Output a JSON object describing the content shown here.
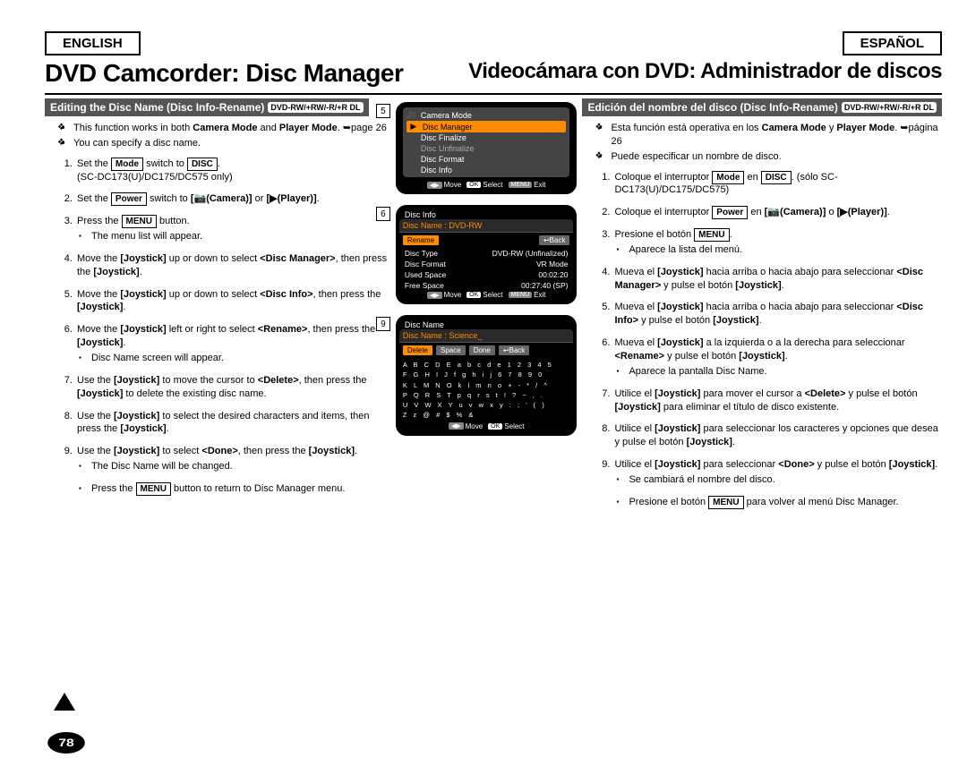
{
  "lang": {
    "en": "ENGLISH",
    "es": "ESPAÑOL"
  },
  "title": {
    "en": "DVD Camcorder: Disc Manager",
    "es": "Videocámara con DVD: Administrador de discos"
  },
  "subhead": {
    "en": "Editing the Disc Name (Disc Info-Rename)",
    "es": "Edición del nombre del disco (Disc Info-Rename)",
    "badge": "DVD-RW/+RW/-R/+R DL"
  },
  "notes_en": [
    "This function works in both <b>Camera Mode</b> and <b>Player Mode</b>. ➥page 26",
    "You can specify a disc name."
  ],
  "notes_es": [
    "Esta función está operativa en los <b>Camera Mode</b> y <b>Player Mode</b>. ➥página 26",
    "Puede especificar un nombre de disco."
  ],
  "steps_en": [
    "Set the <span class='box'>Mode</span> switch to <span class='box'>DISC</span>.<br>(SC-DC173(U)/DC175/DC575 only)",
    "Set the <span class='box'>Power</span> switch to <b>[📷(Camera)]</b> or <b>[▶(Player)]</b>.",
    "Press the <span class='box'>MENU</span> button.<ul class='sub'><li>The menu list will appear.</li></ul>",
    "Move the <b>[Joystick]</b> up or down to select <b>&lt;Disc Manager&gt;</b>, then press the <b>[Joystick]</b>.",
    "Move the <b>[Joystick]</b> up or down to select <b>&lt;Disc Info&gt;</b>, then press the <b>[Joystick]</b>.",
    "Move the <b>[Joystick]</b> left or right to select <b>&lt;Rename&gt;</b>, then press the <b>[Joystick]</b>.<ul class='sub'><li>Disc Name screen will appear.</li></ul>",
    "Use the <b>[Joystick]</b> to move the cursor to <b>&lt;Delete&gt;</b>, then press the <b>[Joystick]</b> to delete the existing disc name.",
    "Use the <b>[Joystick]</b> to select the desired characters and items, then press the <b>[Joystick]</b>.",
    "Use the <b>[Joystick]</b> to select <b>&lt;Done&gt;</b>, then press the <b>[Joystick]</b>.<ul class='sub'><li>The Disc Name will be changed.</li><li>Press the <span class='box'>MENU</span> button to return to Disc Manager menu.</li></ul>"
  ],
  "steps_es": [
    "Coloque el interruptor <span class='box'>Mode</span> en <span class='box'>DISC</span>. (sólo SC-DC173(U)/DC175/DC575)",
    "Coloque el interruptor <span class='box'>Power</span> en <b>[📷(Camera)]</b> o <b>[▶(Player)]</b>.",
    "Presione el botón <span class='box'>MENU</span>.<ul class='sub'><li>Aparece la lista del menú.</li></ul>",
    "Mueva el <b>[Joystick]</b> hacia arriba o hacia abajo para seleccionar <b>&lt;Disc Manager&gt;</b> y pulse el botón <b>[Joystick]</b>.",
    "Mueva el <b>[Joystick]</b> hacia arriba o hacia abajo para seleccionar <b>&lt;Disc Info&gt;</b> y pulse el botón <b>[Joystick]</b>.",
    "Mueva el <b>[Joystick]</b> a la izquierda o a la derecha para seleccionar <b>&lt;Rename&gt;</b> y pulse el botón <b>[Joystick]</b>.<ul class='sub'><li>Aparece la pantalla Disc Name.</li></ul>",
    "Utilice el <b>[Joystick]</b> para mover el cursor a <b>&lt;Delete&gt;</b> y pulse el botón <b>[Joystick]</b> para eliminar el título de disco existente.",
    "Utilice el <b>[Joystick]</b> para seleccionar los caracteres y opciones que desea y pulse el botón <b>[Joystick]</b>.",
    "Utilice el <b>[Joystick]</b> para seleccionar <b>&lt;Done&gt;</b> y pulse el botón <b>[Joystick]</b>.<ul class='sub'><li>Se cambiará el nombre del disco.</li><li>Presione el botón <span class='box'>MENU</span> para volver al menú Disc Manager.</li></ul>"
  ],
  "screen5": {
    "title": "Camera Mode",
    "items": [
      "Disc Manager",
      "Disc Finalize",
      "Disc Unfinalize",
      "Disc Format",
      "Disc Info"
    ],
    "highlight": 0,
    "muted": 2,
    "footer": {
      "move": "Move",
      "select": "Select",
      "exit": "Exit"
    }
  },
  "screen6": {
    "title": "Disc Info",
    "name_label": "Disc Name : DVD-RW",
    "btn1": "Rename",
    "btn2": "↩Back",
    "rows": [
      [
        "Disc Type",
        "DVD-RW (Unfinalized)"
      ],
      [
        "Disc Format",
        "VR Mode"
      ],
      [
        "Used Space",
        "00:02:20"
      ],
      [
        "Free Space",
        "00:27:40 (SP)"
      ]
    ],
    "footer": {
      "move": "Move",
      "select": "Select",
      "exit": "Exit"
    }
  },
  "screen9": {
    "title": "Disc Name",
    "name_label": "Disc Name : Science_",
    "btns": [
      "Delete",
      "Space",
      "Done",
      "↩Back"
    ],
    "chars": [
      "A B C D E  a b c d e  1 2 3 4 5",
      "F G H I J  f g h i j  6 7 8 9 0",
      "K L M N O  k l m n o  + - * / ^",
      "P Q R S T  p q r s t  ! ? ~ , .",
      "U V W X Y  u v w x y  : ; ' ( )",
      "Z          z          @ # $ % &"
    ],
    "footer": {
      "move": "Move",
      "select": "Select"
    }
  },
  "pagenum": "78"
}
